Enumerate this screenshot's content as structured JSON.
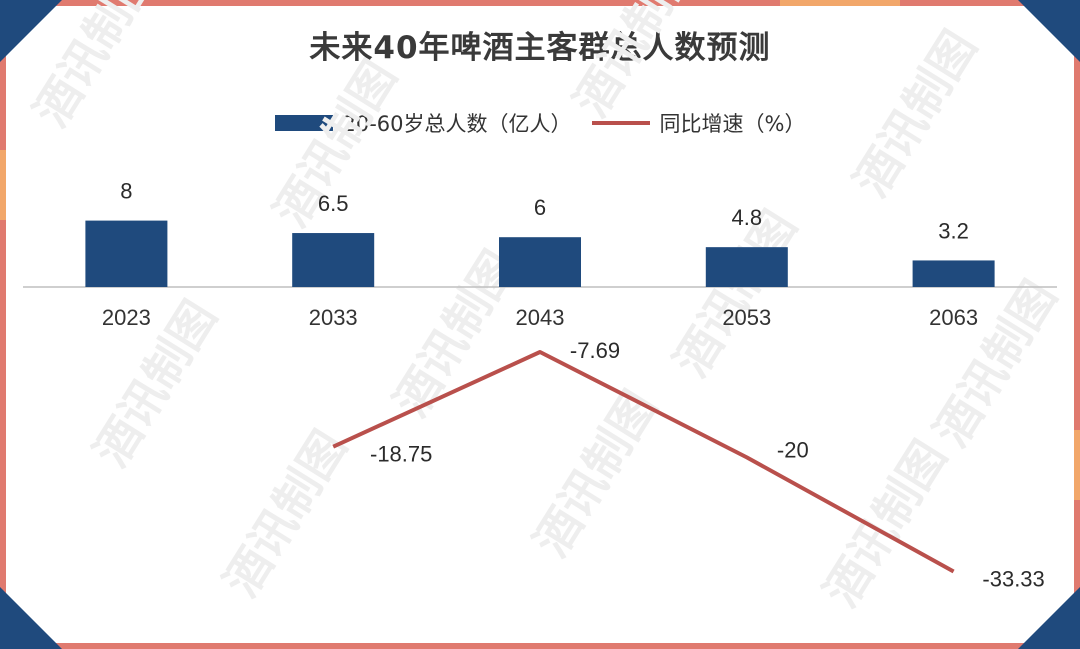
{
  "chart_data": {
    "type": "bar+line",
    "title": "未来40年啤酒主客群总人数预测",
    "categories": [
      "2023",
      "2033",
      "2043",
      "2053",
      "2063"
    ],
    "series": [
      {
        "name": "20-60岁总人数（亿人）",
        "type": "bar",
        "color": "#1f4a7d",
        "values": [
          8,
          6.5,
          6,
          4.8,
          3.2
        ],
        "labels": [
          "8",
          "6.5",
          "6",
          "4.8",
          "3.2"
        ]
      },
      {
        "name": "同比增速（%）",
        "type": "line",
        "color": "#b9504c",
        "values": [
          null,
          -18.75,
          -7.69,
          -20,
          -33.33
        ],
        "labels": [
          "",
          "-18.75",
          "-7.69",
          "-20",
          "-33.33"
        ]
      }
    ],
    "legend_position": "top"
  },
  "watermark": "酒讯制图",
  "colors": {
    "border_red": "#e07a6f",
    "border_orange": "#f2a76a",
    "corner_blue": "#1f4a7d"
  }
}
